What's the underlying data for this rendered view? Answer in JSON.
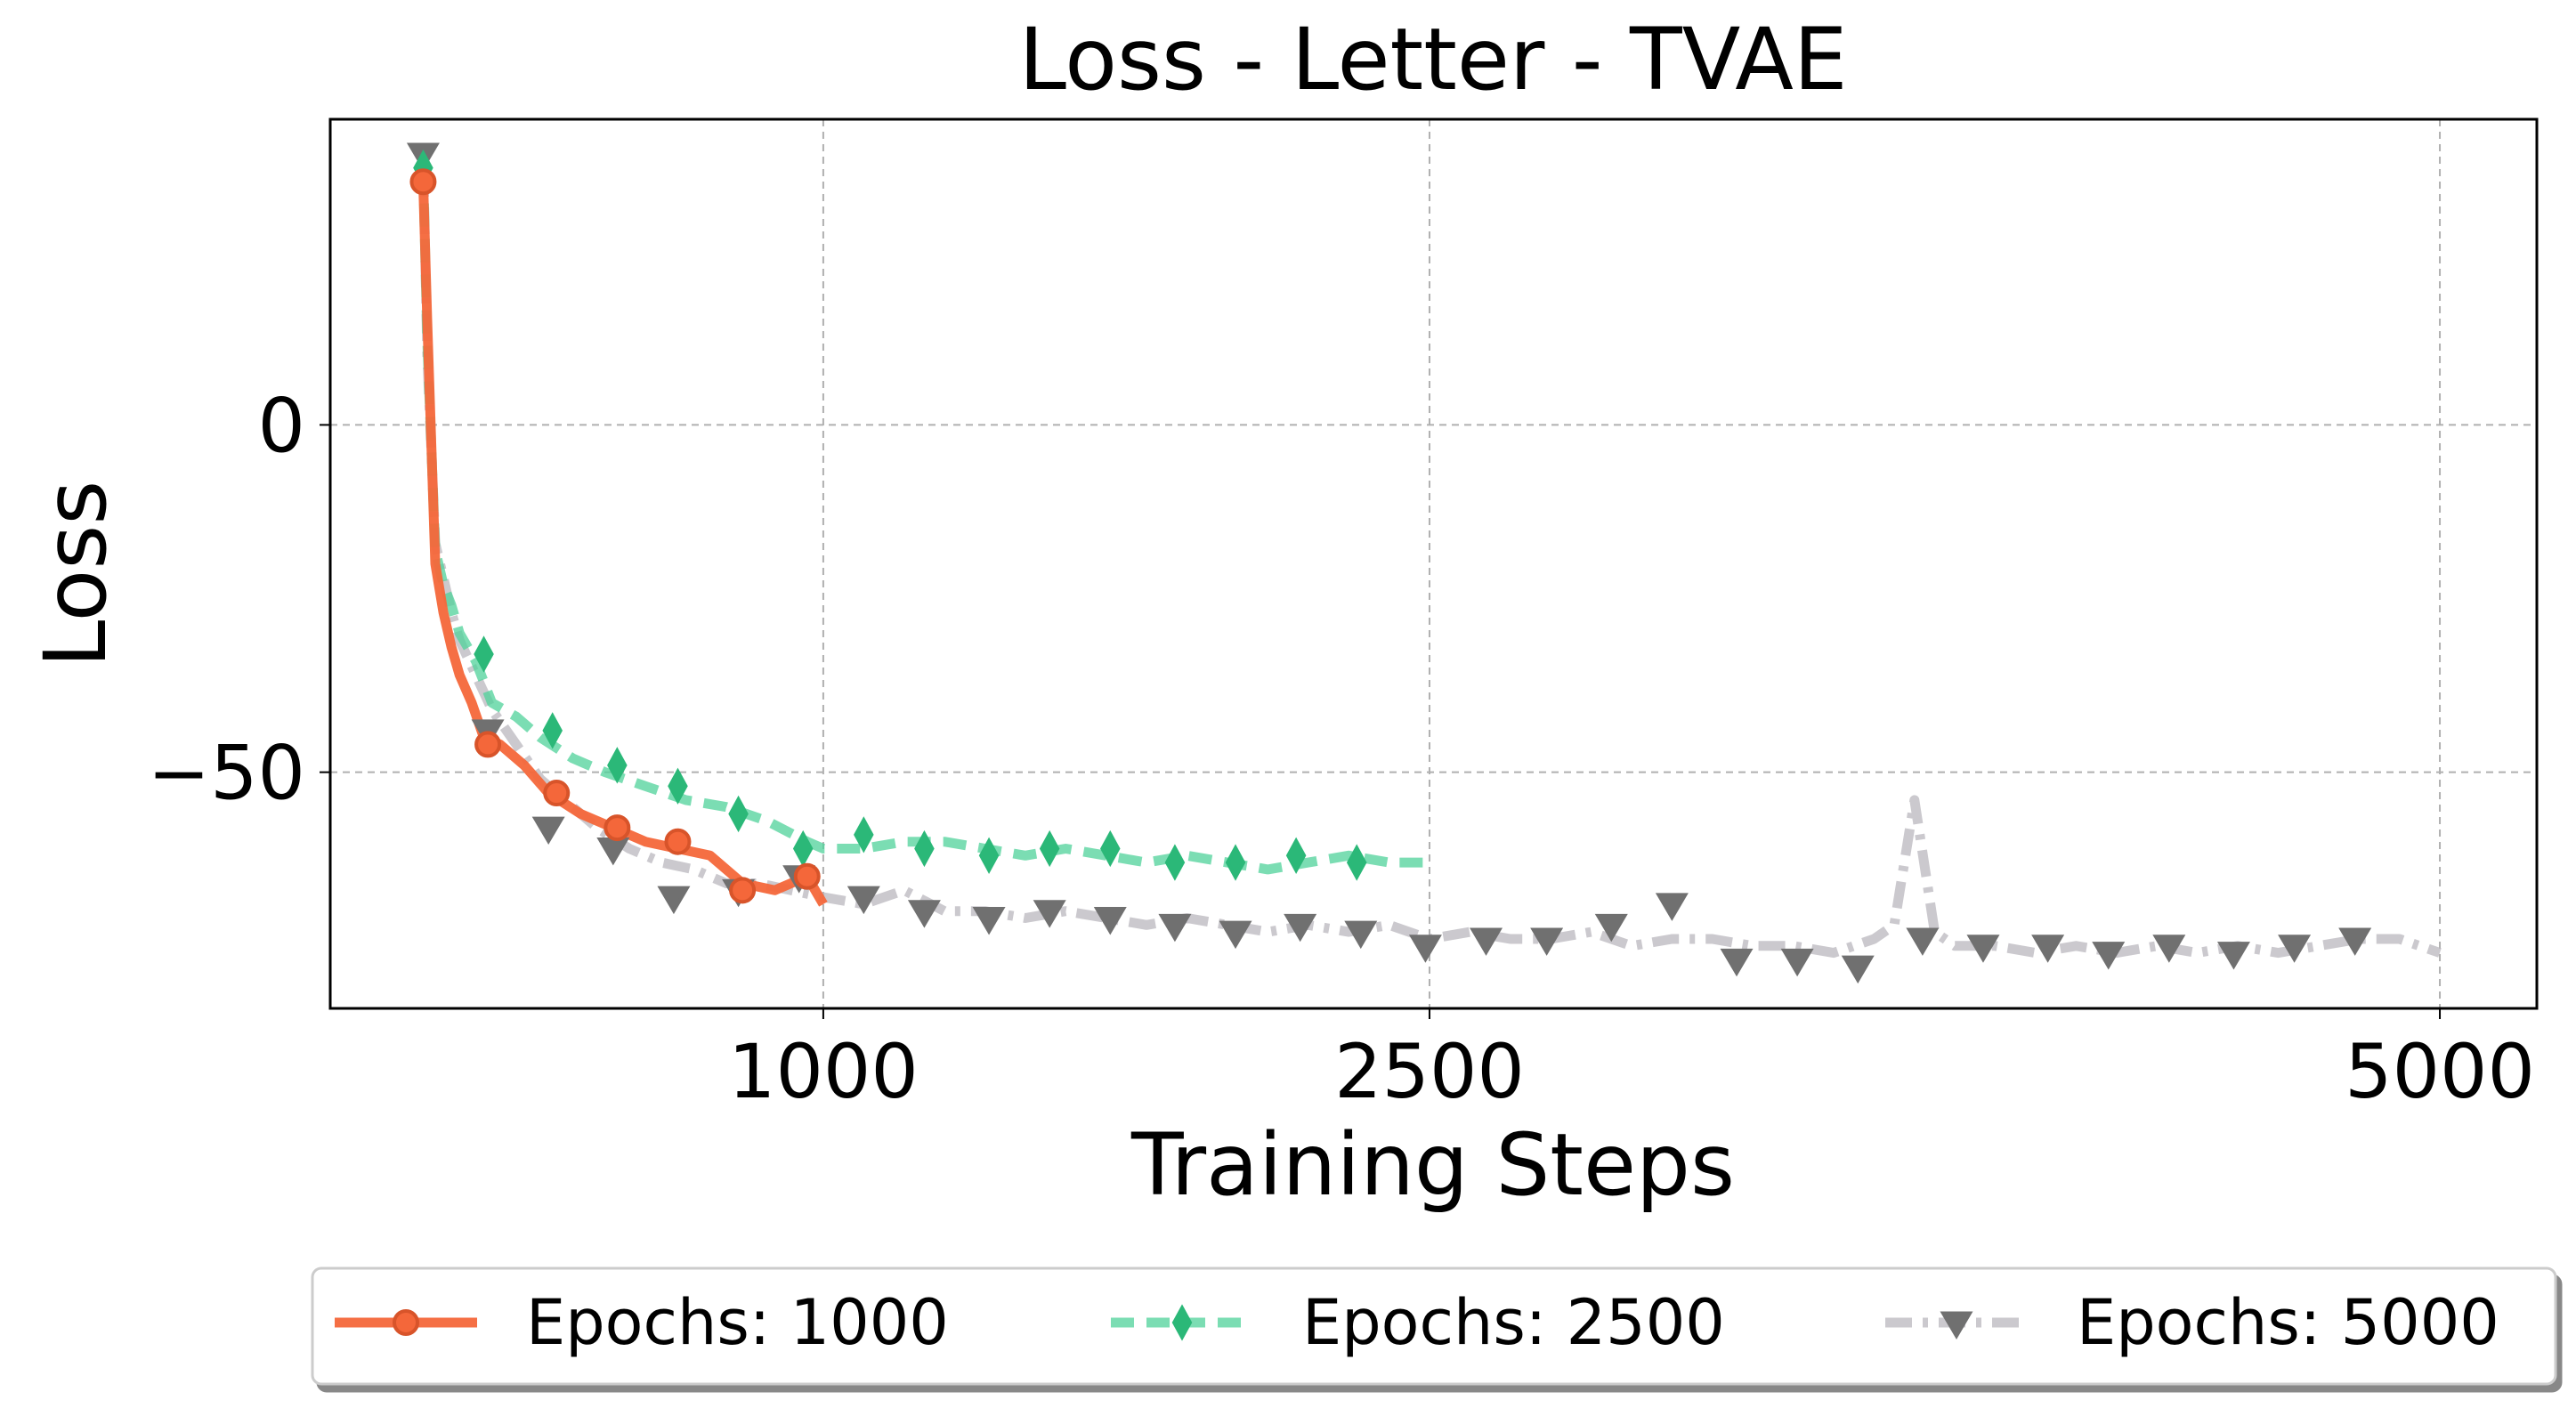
{
  "chart_data": {
    "type": "line",
    "title": "Loss - Letter - TVAE",
    "xlabel": "Training Steps",
    "ylabel": "Loss",
    "xticks": [
      1000,
      2500,
      5000
    ],
    "yticks": [
      0,
      -50
    ],
    "ytick_labels": [
      "0",
      "−50"
    ],
    "xlim": [
      -220,
      5240
    ],
    "ylim": [
      -84,
      44
    ],
    "grid": true,
    "legend_position": "bottom-center",
    "series": [
      {
        "name": "Epochs: 1000",
        "color": "#f4673a",
        "style": "solid",
        "marker": "circle",
        "max_step": 1000,
        "x": [
          10,
          20,
          40,
          60,
          80,
          100,
          130,
          160,
          200,
          260,
          320,
          400,
          480,
          560,
          640,
          720,
          800,
          880,
          960,
          1000
        ],
        "y": [
          35,
          15,
          -20,
          -27,
          -32,
          -36,
          -40,
          -45,
          -46,
          -49,
          -53,
          -56,
          -58,
          -60,
          -61,
          -62,
          -66,
          -67,
          -65,
          -69
        ],
        "marker_x": [
          10,
          170,
          340,
          490,
          640,
          800,
          960
        ],
        "marker_y": [
          35,
          -46,
          -53,
          -58,
          -60,
          -67,
          -65
        ]
      },
      {
        "name": "Epochs: 2500",
        "color": "#4fd19a",
        "marker_color": "#2bb878",
        "style": "dashed",
        "marker": "thin_diamond",
        "max_step": 2500,
        "x": [
          10,
          20,
          40,
          60,
          80,
          100,
          140,
          180,
          240,
          300,
          380,
          460,
          560,
          660,
          760,
          860,
          960,
          1000,
          1100,
          1200,
          1300,
          1400,
          1500,
          1600,
          1700,
          1800,
          1900,
          2000,
          2100,
          2200,
          2300,
          2400,
          2500
        ],
        "y": [
          37,
          12,
          -18,
          -23,
          -26,
          -30,
          -34,
          -40,
          -42,
          -45,
          -48,
          -50,
          -52,
          -54,
          -55,
          -57,
          -60,
          -61,
          -61,
          -60,
          -60,
          -61,
          -62,
          -61,
          -62,
          -63,
          -62,
          -63,
          -64,
          -63,
          -62,
          -63,
          -63
        ],
        "marker_x": [
          10,
          160,
          330,
          490,
          640,
          790,
          950,
          1100,
          1250,
          1410,
          1560,
          1710,
          1870,
          2020,
          2170,
          2320
        ],
        "marker_y": [
          37,
          -33,
          -44,
          -49,
          -52,
          -56,
          -61,
          -59,
          -61,
          -62,
          -61,
          -61,
          -63,
          -63,
          -62,
          -63
        ]
      },
      {
        "name": "Epochs: 5000",
        "color": "#b9b7bd",
        "marker_color": "#707070",
        "style": "dashdot",
        "marker": "triangle_down",
        "max_step": 5000,
        "x": [
          10,
          20,
          40,
          60,
          80,
          100,
          140,
          180,
          240,
          300,
          360,
          440,
          520,
          600,
          680,
          760,
          840,
          920,
          1000,
          1100,
          1200,
          1300,
          1400,
          1500,
          1600,
          1700,
          1800,
          1900,
          2000,
          2100,
          2200,
          2300,
          2400,
          2500,
          2600,
          2700,
          2800,
          2900,
          3000,
          3100,
          3200,
          3300,
          3400,
          3500,
          3600,
          3650,
          3700,
          3750,
          3800,
          3900,
          4000,
          4100,
          4200,
          4300,
          4400,
          4500,
          4600,
          4700,
          4800,
          4900,
          5000
        ],
        "y": [
          39,
          10,
          -17,
          -22,
          -27,
          -31,
          -36,
          -41,
          -46,
          -51,
          -54,
          -58,
          -61,
          -63,
          -64,
          -66,
          -66,
          -67,
          -68,
          -69,
          -67,
          -70,
          -70,
          -71,
          -70,
          -71,
          -72,
          -71,
          -72,
          -73,
          -72,
          -73,
          -72,
          -74,
          -73,
          -74,
          -74,
          -73,
          -75,
          -74,
          -74,
          -75,
          -75,
          -76,
          -74,
          -72,
          -54,
          -73,
          -75,
          -75,
          -76,
          -75,
          -76,
          -75,
          -76,
          -75,
          -76,
          -75,
          -74,
          -74,
          -76
        ],
        "marker_x": [
          10,
          170,
          320,
          480,
          630,
          790,
          940,
          1100,
          1250,
          1410,
          1560,
          1710,
          1870,
          2020,
          2180,
          2330,
          2490,
          2640,
          2790,
          2950,
          3100,
          3260,
          3410,
          3560,
          3720,
          3870,
          4030,
          4180,
          4330,
          4490,
          4640,
          4790
        ],
        "marker_y": [
          39,
          -44,
          -58,
          -61,
          -68,
          -67,
          -65,
          -68,
          -70,
          -71,
          -70,
          -71,
          -72,
          -73,
          -72,
          -73,
          -75,
          -74,
          -74,
          -72,
          -69,
          -77,
          -77,
          -78,
          -74,
          -75,
          -75,
          -76,
          -75,
          -76,
          -75,
          -74
        ]
      }
    ]
  }
}
